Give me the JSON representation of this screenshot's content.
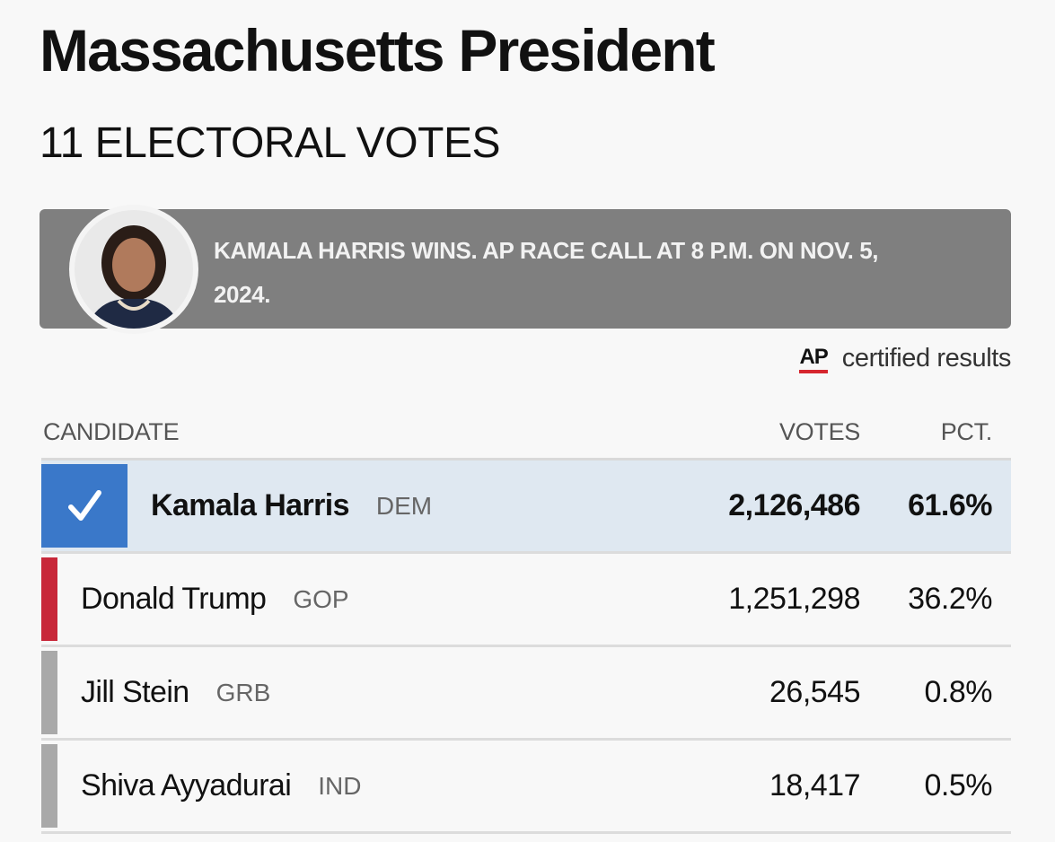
{
  "header": {
    "title": "Massachusetts President",
    "subtitle": "11 ELECTORAL VOTES"
  },
  "banner": {
    "text": "KAMALA HARRIS WINS. AP RACE CALL AT 8 P.M. ON NOV. 5, 2024."
  },
  "source": {
    "logo": "AP",
    "text": "certified results"
  },
  "table": {
    "columns": [
      "CANDIDATE",
      "VOTES",
      "PCT."
    ],
    "rows": [
      {
        "name": "Kamala Harris",
        "party": "DEM",
        "votes": "2,126,486",
        "pct": "61.6%",
        "color": "#3a78c9",
        "winner": true
      },
      {
        "name": "Donald Trump",
        "party": "GOP",
        "votes": "1,251,298",
        "pct": "36.2%",
        "color": "#c8283a",
        "winner": false
      },
      {
        "name": "Jill Stein",
        "party": "GRB",
        "votes": "26,545",
        "pct": "0.8%",
        "color": "#a9a9a9",
        "winner": false
      },
      {
        "name": "Shiva Ayyadurai",
        "party": "IND",
        "votes": "18,417",
        "pct": "0.5%",
        "color": "#a9a9a9",
        "winner": false
      }
    ]
  }
}
